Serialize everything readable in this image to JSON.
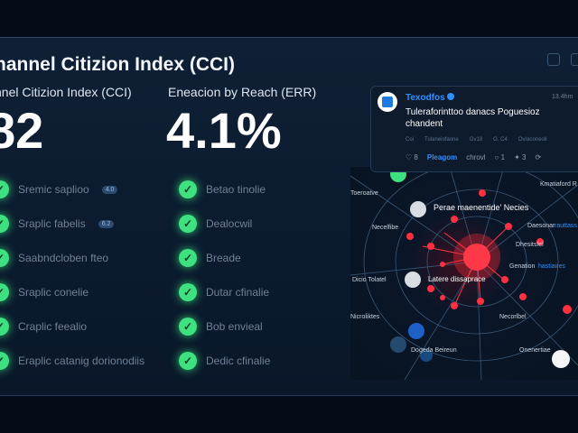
{
  "header": {
    "title": "hannel Citizion Index (CCI)"
  },
  "metrics": [
    {
      "label": "nnel Citizion Index (CCI)",
      "value": "82"
    },
    {
      "label": "Eneacion by Reach (ERR)",
      "value": "4.1%"
    }
  ],
  "left_list": [
    {
      "label": "Sremic saplioo",
      "badge": "4.0"
    },
    {
      "label": "Sraplic fabelis",
      "badge": "6.2"
    },
    {
      "label": "Saabndcloben fteo"
    },
    {
      "label": "Sraplic conelie"
    },
    {
      "label": "Craplic feealio"
    },
    {
      "label": "Eraplic catanig dorionodiis"
    }
  ],
  "right_list": [
    {
      "label": "Betao tinolie"
    },
    {
      "label": "Dealocwil"
    },
    {
      "label": "Breade"
    },
    {
      "label": "Dutar cfinalie"
    },
    {
      "label": "Bob envieal"
    },
    {
      "label": "Dedic cfinalie"
    }
  ],
  "post": {
    "author": "Texodfos",
    "time": "13.4hm",
    "text": "Tuleraforinttoo danacs Poguesioz chandent",
    "meta": [
      "Coi",
      "Tulaneiofaone",
      "Gv18",
      "G. C4",
      "Ov/aconeoll"
    ],
    "actions": {
      "likes": "8",
      "link": "Pleagom",
      "comment": "chrovl",
      "shares": "1",
      "gifts": "3"
    }
  },
  "network": {
    "labels": [
      "Toeroatve",
      "Kmatiaford R",
      "Perae maenentide' Necies",
      "Necelfibe",
      "Daesonar",
      "rauttass",
      "Dhesitsfel",
      "Genation",
      "hastiaires",
      "Dicio Tolatel",
      "Latere dissaprace",
      "Nicroliktes",
      "Necorlbel",
      "Dogeda Beireun",
      "Onenertiae"
    ]
  },
  "colors": {
    "accent": "#3ee07f",
    "hub": "#ff2a3a",
    "link": "#2f8fff"
  }
}
